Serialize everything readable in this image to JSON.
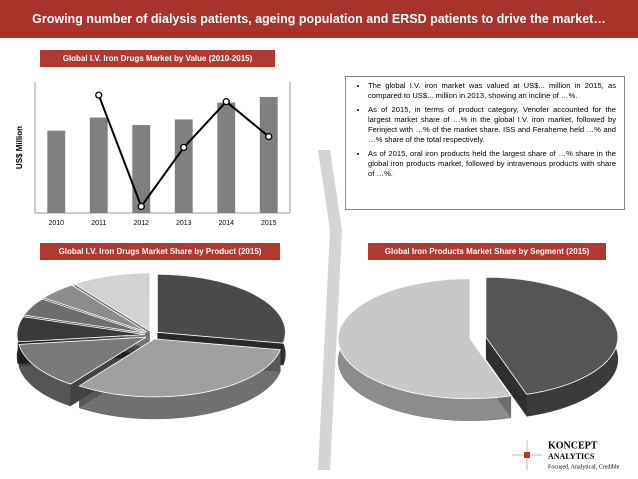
{
  "header": {
    "title": "Growing number of dialysis patients, ageing population and ERSD patients to drive the market…"
  },
  "bullets": [
    "The global I.V. iron market was valued at US$... million in 2015, as compared to US$... million in 2013, showing an incline of …%.",
    "As of 2015, in terms of product category, Venofer accounted for the largest market share of …% in the global I.V. iron market, followed by Ferinject with …% of the market share. ISS and Feraheme held …% and …% share of the total respectively.",
    "As of 2015, oral iron products held the largest share of …% share in the global iron products market, followed by intravenous products with share of …%."
  ],
  "logo": {
    "name": "KONCEPT",
    "name2": "ANALYTICS",
    "tagline": "Focused, Analytical, Credible"
  },
  "chart_data": [
    {
      "type": "bar",
      "title": "Global I.V. Iron Drugs Market by Value (2010-2015)",
      "y_label": "US$ Million",
      "categories": [
        "2010",
        "2011",
        "2012",
        "2013",
        "2014",
        "2015"
      ],
      "ylim": [
        0,
        7
      ],
      "y2lim": [
        0,
        6
      ],
      "series": [
        {
          "name": null,
          "color": "#808080",
          "values": [
            4.4,
            5.1,
            4.7,
            5.0,
            5.9,
            6.2
          ]
        },
        {
          "name": null,
          "color": "#000000",
          "axis": "y2",
          "kind": "line",
          "values": [
            null,
            5.4,
            0.3,
            3.0,
            5.1,
            3.5
          ]
        }
      ]
    },
    {
      "type": "pie",
      "title": "Global I.V. Iron Drugs Market Share by Product (2015)",
      "categories": [
        null,
        null,
        null,
        null,
        null,
        null,
        null
      ],
      "values": [
        28,
        32,
        13,
        7,
        5,
        5,
        10
      ],
      "colors": [
        "#4a4a4a",
        "#a0a0a0",
        "#7a7a7a",
        "#3a3a3a",
        "#6e6e6e",
        "#8c8c8c",
        "#d2d2d2"
      ]
    },
    {
      "type": "pie",
      "title": "Global Iron Products Market Share by Segment (2015)",
      "categories": [
        null,
        null
      ],
      "values": [
        45,
        55
      ],
      "colors": [
        "#555555",
        "#c8c8c8"
      ]
    }
  ]
}
